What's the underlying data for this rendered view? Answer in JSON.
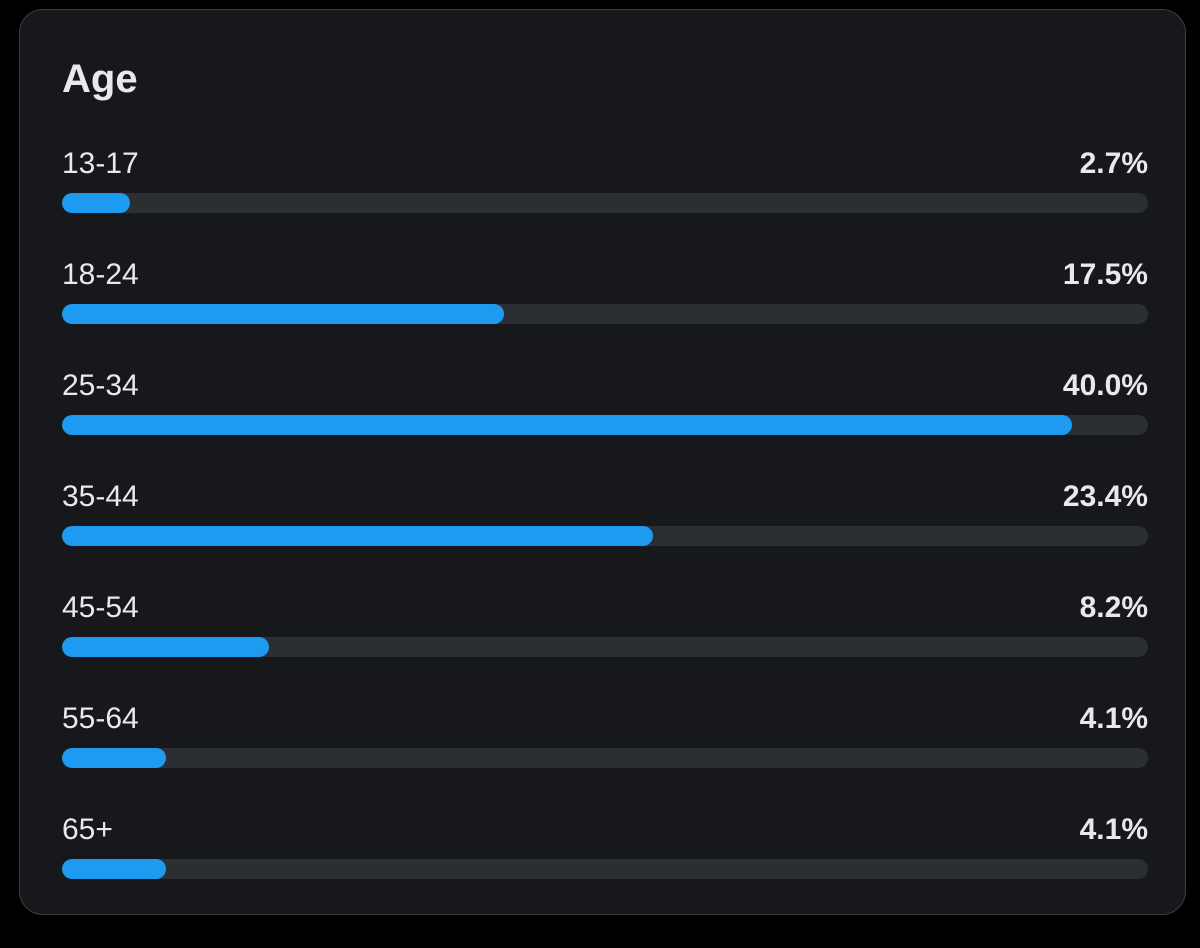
{
  "colors": {
    "bar_fill": "#1d9bf0",
    "bar_track": "#2b2f33",
    "card_background": "#17181c",
    "text": "#e7e9ea"
  },
  "chart_data": {
    "type": "bar",
    "orientation": "horizontal",
    "title": "Age",
    "xlabel": "",
    "ylabel": "",
    "xlim": [
      0,
      43
    ],
    "categories": [
      "13-17",
      "18-24",
      "25-34",
      "35-44",
      "45-54",
      "55-64",
      "65+"
    ],
    "values": [
      2.7,
      17.5,
      40.0,
      23.4,
      8.2,
      4.1,
      4.1
    ],
    "value_labels": [
      "2.7%",
      "17.5%",
      "40.0%",
      "23.4%",
      "8.2%",
      "4.1%",
      "4.1%"
    ]
  }
}
